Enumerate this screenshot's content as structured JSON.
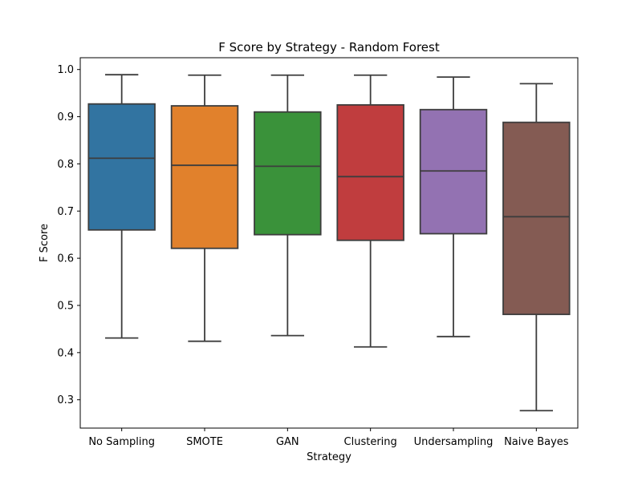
{
  "chart_data": {
    "type": "box",
    "title": "F Score by Strategy - Random Forest",
    "xlabel": "Strategy",
    "ylabel": "F Score",
    "ylim": [
      0.24,
      1.025
    ],
    "yticks": [
      "0.3",
      "0.4",
      "0.5",
      "0.6",
      "0.7",
      "0.8",
      "0.9",
      "1.0"
    ],
    "grid": false,
    "legend": "none",
    "categories": [
      "No Sampling",
      "SMOTE",
      "GAN",
      "Clustering",
      "Undersampling",
      "Naive Bayes"
    ],
    "colors": [
      "#3274a1",
      "#e1812c",
      "#3a923a",
      "#c03d3e",
      "#9372b2",
      "#845b53"
    ],
    "boxes": [
      {
        "category": "No Sampling",
        "whisker_low": 0.431,
        "q1": 0.66,
        "median": 0.812,
        "q3": 0.927,
        "whisker_high": 0.989
      },
      {
        "category": "SMOTE",
        "whisker_low": 0.424,
        "q1": 0.621,
        "median": 0.797,
        "q3": 0.923,
        "whisker_high": 0.988
      },
      {
        "category": "GAN",
        "whisker_low": 0.436,
        "q1": 0.65,
        "median": 0.795,
        "q3": 0.91,
        "whisker_high": 0.988
      },
      {
        "category": "Clustering",
        "whisker_low": 0.412,
        "q1": 0.638,
        "median": 0.773,
        "q3": 0.925,
        "whisker_high": 0.988
      },
      {
        "category": "Undersampling",
        "whisker_low": 0.434,
        "q1": 0.652,
        "median": 0.785,
        "q3": 0.915,
        "whisker_high": 0.984
      },
      {
        "category": "Naive Bayes",
        "whisker_low": 0.277,
        "q1": 0.481,
        "median": 0.688,
        "q3": 0.888,
        "whisker_high": 0.97
      }
    ]
  }
}
